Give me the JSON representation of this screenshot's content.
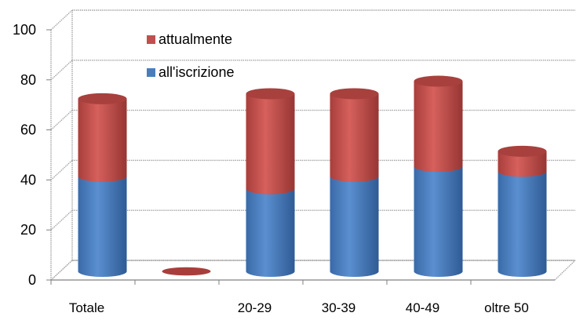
{
  "chart_data": {
    "type": "bar",
    "style": "3d-cylinder-stacked",
    "categories": [
      "Totale",
      "",
      "20-29",
      "30-39",
      "40-49",
      "oltre 50"
    ],
    "series": [
      {
        "name": "all'iscrizione",
        "color": "#4a7ebb",
        "values": [
          38,
          0,
          33,
          38,
          42,
          40
        ]
      },
      {
        "name": "attualmente",
        "color": "#c0504d",
        "values": [
          31,
          0,
          38,
          33,
          34,
          8
        ]
      }
    ],
    "ylim": [
      0,
      100
    ],
    "yticks": [
      "0",
      "20",
      "40",
      "60",
      "80",
      "100"
    ],
    "grid": true,
    "legend_position": "top-left inside plot"
  }
}
